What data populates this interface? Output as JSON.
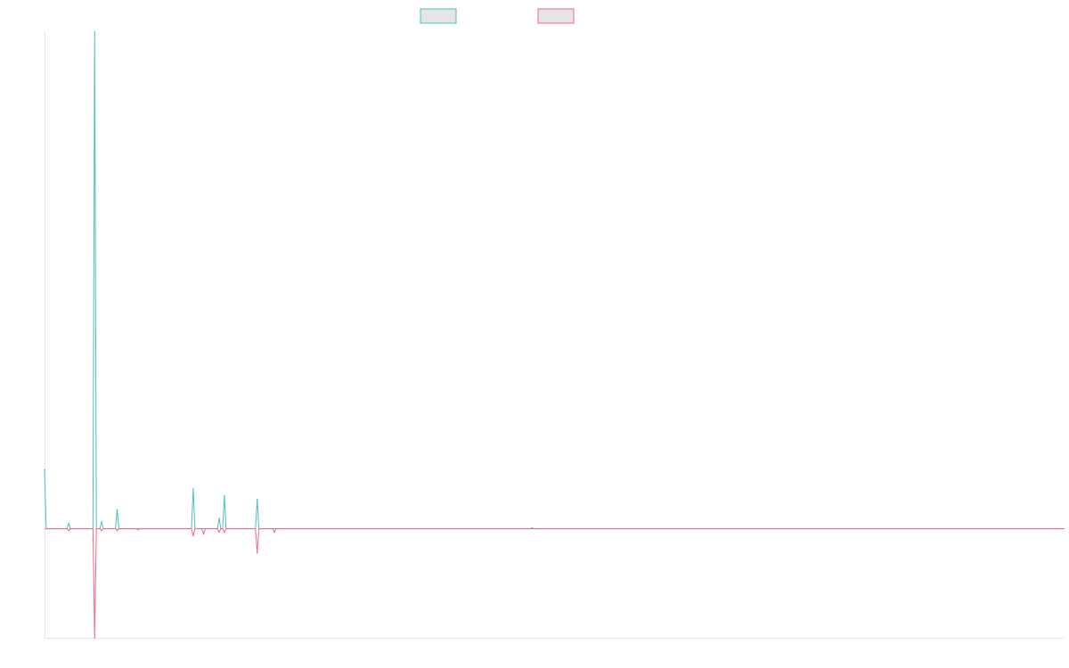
{
  "chart_data": {
    "type": "line",
    "title": "",
    "xlabel": "",
    "ylabel": "",
    "grid": false,
    "legend": {
      "position": "top-center"
    },
    "colors": {
      "series_0": "#4bc0c0",
      "series_1": "#ff6384",
      "axis": "#e6e6e6",
      "swatch_fill": "#e5e5e5"
    },
    "x": [
      0,
      1,
      2,
      3,
      4,
      5,
      6,
      7,
      8,
      9,
      10,
      11,
      12,
      13,
      14,
      15,
      16,
      17,
      18,
      19,
      20,
      21,
      22,
      23,
      24,
      25,
      26,
      27,
      28,
      29,
      30,
      31,
      32,
      33,
      34,
      35,
      36,
      37,
      38,
      39,
      40,
      41,
      42,
      43,
      44,
      45,
      46,
      47,
      48,
      49,
      50,
      51,
      52,
      53,
      54,
      55,
      56,
      57,
      58,
      59,
      60,
      61,
      62,
      63,
      64,
      65,
      66,
      67,
      68,
      69,
      70,
      71,
      72,
      73,
      74,
      75,
      76,
      77,
      78,
      79,
      80,
      81,
      82,
      83,
      84,
      85,
      86,
      87,
      88,
      89,
      90,
      91,
      92,
      93,
      94,
      95,
      96,
      97,
      98,
      99,
      100,
      101,
      102,
      103,
      104,
      105,
      106,
      107,
      108,
      109,
      110,
      111,
      112,
      113,
      114,
      115,
      116,
      117,
      118,
      119,
      120,
      121,
      122,
      123,
      124,
      125,
      126,
      127,
      128,
      129,
      130,
      131,
      132,
      133,
      134,
      135,
      136,
      137,
      138,
      139,
      140,
      141,
      142,
      143,
      144,
      145,
      146,
      147,
      148,
      149,
      150,
      151,
      152,
      153,
      154,
      155,
      156,
      157,
      158,
      159,
      160,
      161,
      162,
      163,
      164,
      165,
      166,
      167,
      168,
      169,
      170,
      171,
      172,
      173,
      174,
      175,
      176,
      177,
      178,
      179,
      180,
      181,
      182,
      183,
      184,
      185,
      186,
      187,
      188,
      189,
      190,
      191,
      192,
      193,
      194,
      195,
      196,
      197,
      198,
      199,
      200,
      201,
      202,
      203,
      204,
      205,
      206,
      207,
      208,
      209,
      210,
      211,
      212,
      213,
      214,
      215,
      216,
      217,
      218,
      219,
      220,
      221,
      222,
      223,
      224,
      225,
      226,
      227,
      228,
      229,
      230,
      231,
      232,
      233,
      234,
      235,
      236,
      237,
      238,
      239,
      240,
      241,
      242,
      243,
      244,
      245,
      246,
      247,
      248,
      249,
      250,
      251,
      252,
      253,
      254,
      255,
      256,
      257,
      258,
      259,
      260,
      261,
      262,
      263,
      264,
      265,
      266,
      267,
      268,
      269,
      270,
      271,
      272,
      273,
      274,
      275,
      276,
      277,
      278,
      279,
      280,
      281,
      282,
      283,
      284,
      285,
      286,
      287,
      288,
      289,
      290,
      291,
      292,
      293,
      294,
      295,
      296,
      297,
      298,
      299,
      300,
      301,
      302,
      303,
      304,
      305,
      306,
      307,
      308,
      309,
      310,
      311,
      312,
      313,
      314,
      315,
      316,
      317,
      318,
      319,
      320,
      321,
      322,
      323,
      324,
      325,
      326,
      327,
      328,
      329,
      330,
      331,
      332,
      333,
      334,
      335,
      336,
      337,
      338,
      339,
      340,
      341,
      342,
      343,
      344,
      345,
      346,
      347,
      348,
      349,
      350,
      351,
      352,
      353,
      354,
      355,
      356,
      357,
      358,
      359,
      360,
      361,
      362,
      363,
      364,
      365,
      366,
      367,
      368,
      369,
      370,
      371,
      372,
      373,
      374,
      375,
      376,
      377,
      378,
      379,
      380,
      381,
      382,
      383,
      384,
      385,
      386,
      387,
      388,
      389,
      390,
      391,
      392,
      393,
      394,
      395,
      396,
      397,
      398,
      399,
      400,
      401,
      402,
      403,
      404,
      405,
      406,
      407,
      408,
      409,
      410,
      411,
      412,
      413,
      414,
      415,
      416,
      417,
      418,
      419,
      420,
      421,
      422,
      423,
      424,
      425,
      426,
      427,
      428,
      429,
      430,
      431,
      432,
      433,
      434,
      435,
      436,
      437,
      438,
      439,
      440,
      441,
      442,
      443,
      444,
      445,
      446,
      447,
      448,
      449,
      450,
      451,
      452,
      453,
      454,
      455,
      456,
      457,
      458,
      459,
      460,
      461,
      462,
      463,
      464,
      465,
      466,
      467,
      468,
      469,
      470,
      471,
      472,
      473,
      474,
      475,
      476,
      477,
      478,
      479,
      480,
      481,
      482,
      483,
      484,
      485,
      486,
      487,
      488,
      489,
      490,
      491,
      492,
      493,
      494,
      495,
      496,
      497,
      498,
      499,
      500,
      501,
      502,
      503,
      504,
      505,
      506,
      507,
      508,
      509,
      510,
      511,
      512,
      513,
      514,
      515,
      516,
      517,
      518,
      519,
      520,
      521,
      522,
      523,
      524,
      525,
      526,
      527,
      528,
      529,
      530,
      531,
      532,
      533,
      534,
      535,
      536,
      537,
      538,
      539,
      540,
      541,
      542,
      543,
      544,
      545,
      546,
      547,
      548,
      549,
      550,
      551,
      552,
      553,
      554,
      555,
      556,
      557,
      558,
      559,
      560,
      561,
      562,
      563,
      564,
      565,
      566,
      567,
      568,
      569,
      570,
      571,
      572,
      573,
      574,
      575,
      576,
      577,
      578,
      579,
      580,
      581,
      582,
      583,
      584,
      585,
      586,
      587,
      588,
      589,
      590
    ],
    "ylim": [
      -63,
      287
    ],
    "series": [
      {
        "name": "",
        "color": "#4bc0c0",
        "nonzero": [
          [
            0,
            34
          ],
          [
            14,
            3
          ],
          [
            29,
            287
          ],
          [
            33,
            4
          ],
          [
            42,
            11
          ],
          [
            86,
            23
          ],
          [
            101,
            6
          ],
          [
            104,
            19
          ],
          [
            123,
            17
          ],
          [
            282,
            0.5
          ]
        ]
      },
      {
        "name": "",
        "color": "#ff6384",
        "nonzero": [
          [
            14,
            -1
          ],
          [
            29,
            -63
          ],
          [
            33,
            -1
          ],
          [
            42,
            -1
          ],
          [
            54,
            -0.5
          ],
          [
            86,
            -4
          ],
          [
            92,
            -3
          ],
          [
            101,
            -2
          ],
          [
            104,
            -2
          ],
          [
            123,
            -14
          ],
          [
            133,
            -2
          ]
        ]
      }
    ]
  }
}
